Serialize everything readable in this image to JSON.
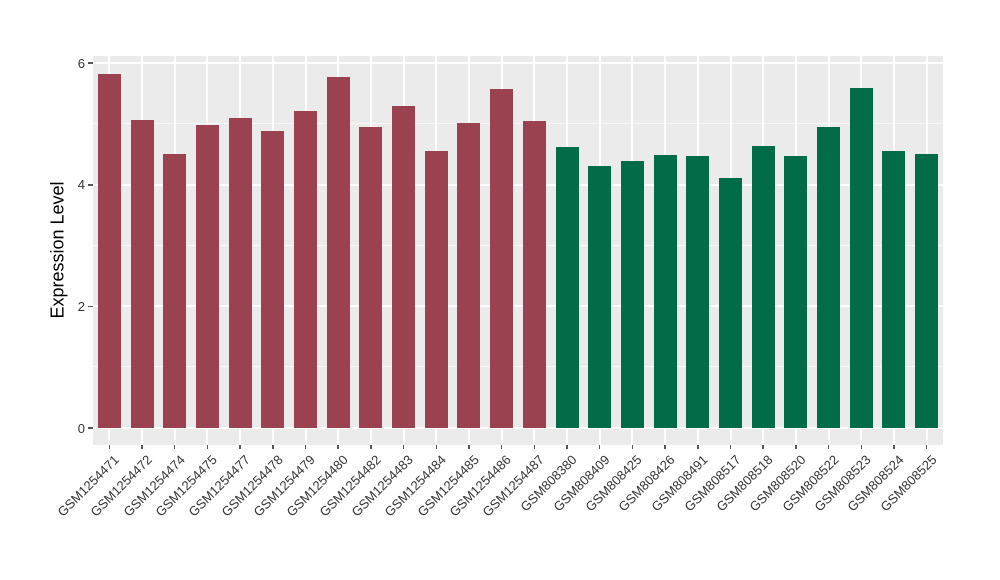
{
  "figure": {
    "background": "#ffffff",
    "panel_background": "#ebebeb",
    "gridline_color": "#ffffff",
    "axis_text_color": "#333333",
    "axis_title_color": "#000000"
  },
  "chart_data": {
    "type": "bar",
    "title": "",
    "xlabel": "",
    "ylabel": "Expression Level",
    "ylim": [
      0,
      6.4
    ],
    "yticks": [
      0,
      2,
      4,
      6
    ],
    "minor_yticks": [
      1,
      3,
      5
    ],
    "grid": true,
    "legend_position": "none",
    "group_colors": {
      "group1": "#9b4250",
      "group2": "#026b48"
    },
    "bars": [
      {
        "label": "GSM1254471",
        "value": 5.82,
        "color": "#9b4250"
      },
      {
        "label": "GSM1254472",
        "value": 5.06,
        "color": "#9b4250"
      },
      {
        "label": "GSM1254474",
        "value": 4.5,
        "color": "#9b4250"
      },
      {
        "label": "GSM1254475",
        "value": 4.98,
        "color": "#9b4250"
      },
      {
        "label": "GSM1254477",
        "value": 5.1,
        "color": "#9b4250"
      },
      {
        "label": "GSM1254478",
        "value": 4.88,
        "color": "#9b4250"
      },
      {
        "label": "GSM1254479",
        "value": 5.22,
        "color": "#9b4250"
      },
      {
        "label": "GSM1254480",
        "value": 5.78,
        "color": "#9b4250"
      },
      {
        "label": "GSM1254482",
        "value": 4.95,
        "color": "#9b4250"
      },
      {
        "label": "GSM1254483",
        "value": 5.3,
        "color": "#9b4250"
      },
      {
        "label": "GSM1254484",
        "value": 4.56,
        "color": "#9b4250"
      },
      {
        "label": "GSM1254485",
        "value": 5.01,
        "color": "#9b4250"
      },
      {
        "label": "GSM1254486",
        "value": 5.57,
        "color": "#9b4250"
      },
      {
        "label": "GSM1254487",
        "value": 5.05,
        "color": "#9b4250"
      },
      {
        "label": "GSM808380",
        "value": 4.62,
        "color": "#026b48"
      },
      {
        "label": "GSM808409",
        "value": 4.31,
        "color": "#026b48"
      },
      {
        "label": "GSM808425",
        "value": 4.39,
        "color": "#026b48"
      },
      {
        "label": "GSM808426",
        "value": 4.49,
        "color": "#026b48"
      },
      {
        "label": "GSM808491",
        "value": 4.47,
        "color": "#026b48"
      },
      {
        "label": "GSM808517",
        "value": 4.12,
        "color": "#026b48"
      },
      {
        "label": "GSM808518",
        "value": 4.64,
        "color": "#026b48"
      },
      {
        "label": "GSM808520",
        "value": 4.48,
        "color": "#026b48"
      },
      {
        "label": "GSM808522",
        "value": 4.95,
        "color": "#026b48"
      },
      {
        "label": "GSM808523",
        "value": 5.6,
        "color": "#026b48"
      },
      {
        "label": "GSM808524",
        "value": 4.56,
        "color": "#026b48"
      },
      {
        "label": "GSM808525",
        "value": 4.5,
        "color": "#026b48"
      }
    ]
  }
}
